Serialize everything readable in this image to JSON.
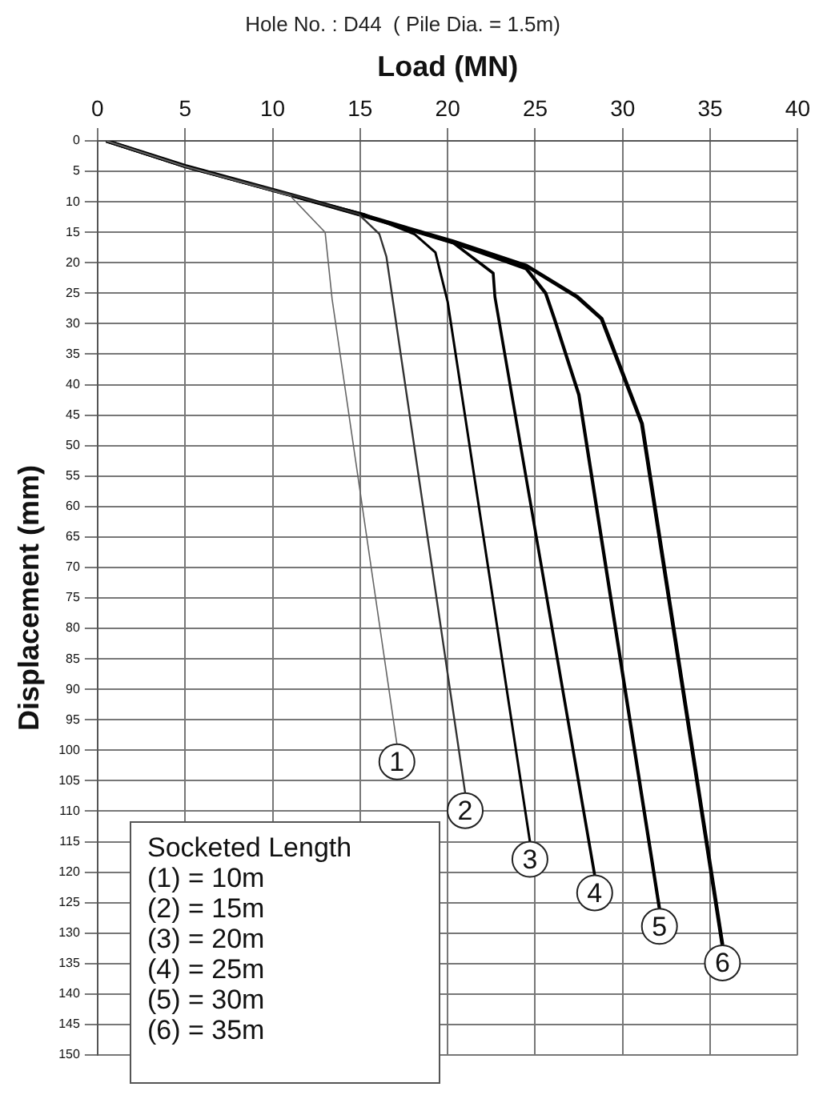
{
  "chart_data": {
    "type": "line",
    "title": "Hole No. : D44  ( Pile Dia. = 1.5m)",
    "xlabel": "Load (MN)",
    "ylabel": "Displacement (mm)",
    "xlim": [
      0,
      40
    ],
    "xticks": [
      0,
      5,
      10,
      15,
      20,
      25,
      30,
      35,
      40
    ],
    "ylim": [
      150,
      0
    ],
    "yticks": [
      0,
      5,
      10,
      15,
      20,
      25,
      30,
      35,
      40,
      45,
      50,
      55,
      60,
      65,
      70,
      75,
      80,
      85,
      90,
      95,
      100,
      105,
      110,
      115,
      120,
      125,
      130,
      135,
      140,
      145,
      150
    ],
    "grid": true,
    "legend": false,
    "annotations": [
      "Socketed Length",
      "(1) = 10m",
      "(2) = 15m",
      "(3) = 20m",
      "(4) = 25m",
      "(5) = 30m",
      "(6) = 35m"
    ],
    "series": [
      {
        "name": "1",
        "color": "#666666",
        "x": [
          0.5,
          5,
          11,
          13,
          13.4,
          17.1
        ],
        "values": [
          0,
          4.2,
          9,
          15,
          26,
          99
        ]
      },
      {
        "name": "2",
        "color": "#333333",
        "x": [
          0.5,
          5,
          11,
          14.9,
          16.1,
          16.5,
          21
        ],
        "values": [
          0,
          4.2,
          8.8,
          12,
          15.3,
          19,
          107
        ]
      },
      {
        "name": "3",
        "color": "#000000",
        "x": [
          0.5,
          5,
          11,
          15.2,
          18.1,
          19.3,
          20,
          24.7
        ],
        "values": [
          0,
          4.2,
          8.9,
          12,
          15.3,
          18.3,
          26.4,
          115
        ]
      },
      {
        "name": "4",
        "color": "#000000",
        "x": [
          0.5,
          5,
          11,
          15.2,
          20.3,
          22.6,
          22.7,
          28.4
        ],
        "values": [
          0,
          4.2,
          8.9,
          12.2,
          16.7,
          21.7,
          25.6,
          120.5
        ]
      },
      {
        "name": "5",
        "color": "#000000",
        "x": [
          0.5,
          5,
          11,
          15.2,
          20.3,
          24.5,
          25.6,
          26.1,
          27.5,
          32.1
        ],
        "values": [
          0,
          4.2,
          8.9,
          12.3,
          16.7,
          21,
          25,
          29.2,
          41.7,
          126
        ]
      },
      {
        "name": "6",
        "color": "#000000",
        "x": [
          0.5,
          5,
          11,
          15.2,
          20.3,
          24.5,
          27.4,
          28.8,
          31.1,
          35.7
        ],
        "values": [
          0,
          4.1,
          8.8,
          12.2,
          16.5,
          20.5,
          25.6,
          29.2,
          46.4,
          132
        ]
      }
    ]
  }
}
